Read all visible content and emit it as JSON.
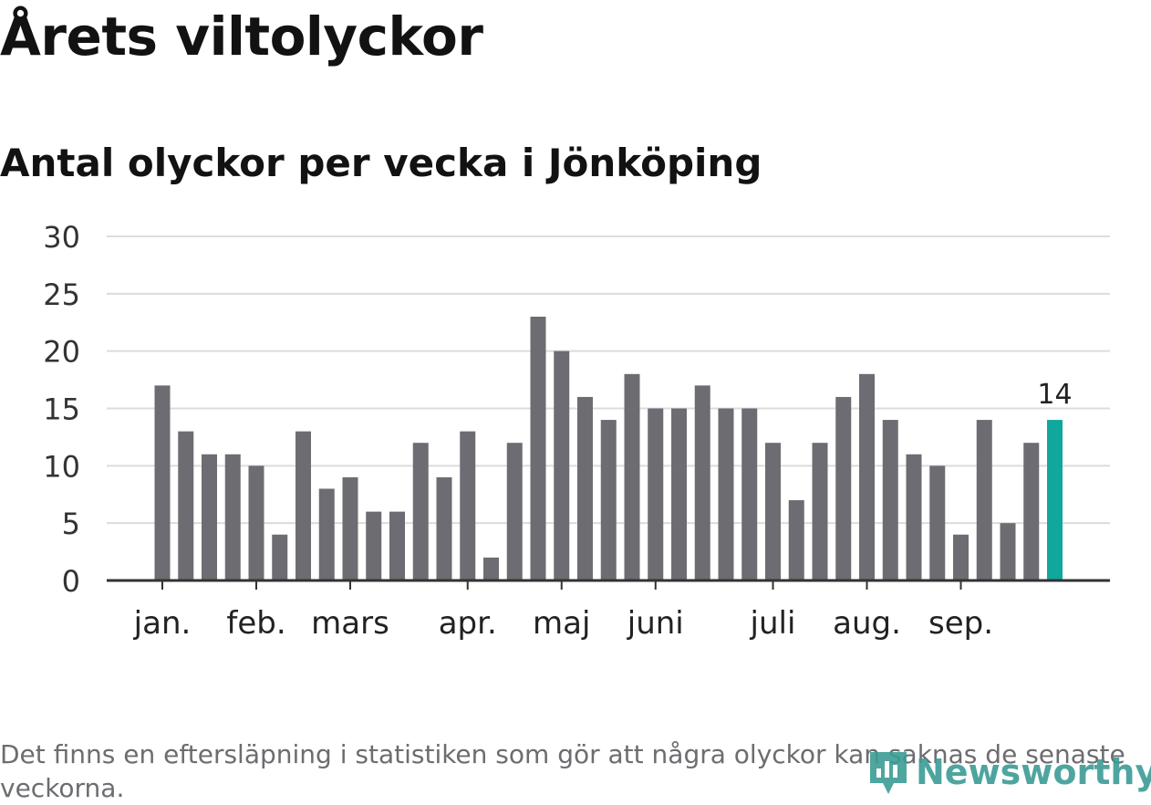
{
  "title": "Årets viltolyckor",
  "subtitle": "Antal olyckor per vecka i Jönköping",
  "footnote": "Det finns en eftersläpning i statistiken som gör att några olyckor kan saknas de senaste veckorna.",
  "brand": "Newsworthy",
  "colors": {
    "bar": "#6d6c72",
    "highlight": "#12a79d",
    "grid": "#dcdcdc",
    "axis": "#333333",
    "logo": "#3b9c95"
  },
  "chart_data": {
    "type": "bar",
    "x": [
      1,
      2,
      3,
      4,
      5,
      6,
      7,
      8,
      9,
      10,
      11,
      12,
      13,
      14,
      15,
      16,
      17,
      18,
      19,
      20,
      21,
      22,
      23,
      24,
      25,
      26,
      27,
      28,
      29,
      30,
      31,
      32,
      33,
      34,
      35,
      36,
      37,
      38,
      39
    ],
    "values": [
      17,
      13,
      11,
      11,
      10,
      4,
      13,
      8,
      9,
      6,
      6,
      12,
      9,
      13,
      2,
      12,
      23,
      20,
      16,
      14,
      18,
      15,
      15,
      17,
      15,
      15,
      12,
      7,
      12,
      16,
      18,
      14,
      11,
      10,
      4,
      14,
      5,
      12,
      14
    ],
    "highlight_last": true,
    "last_value_label": "14",
    "ylim": [
      0,
      30
    ],
    "yticks": [
      "0",
      "5",
      "10",
      "15",
      "20",
      "25",
      "30"
    ],
    "month_labels": [
      {
        "label": "jan.",
        "week": 1
      },
      {
        "label": "feb.",
        "week": 5
      },
      {
        "label": "mars",
        "week": 9
      },
      {
        "label": "apr.",
        "week": 14
      },
      {
        "label": "maj",
        "week": 18
      },
      {
        "label": "juni",
        "week": 22
      },
      {
        "label": "juli",
        "week": 27
      },
      {
        "label": "aug.",
        "week": 31
      },
      {
        "label": "sep.",
        "week": 35
      }
    ],
    "grid": true,
    "xlabel": "",
    "ylabel": ""
  }
}
